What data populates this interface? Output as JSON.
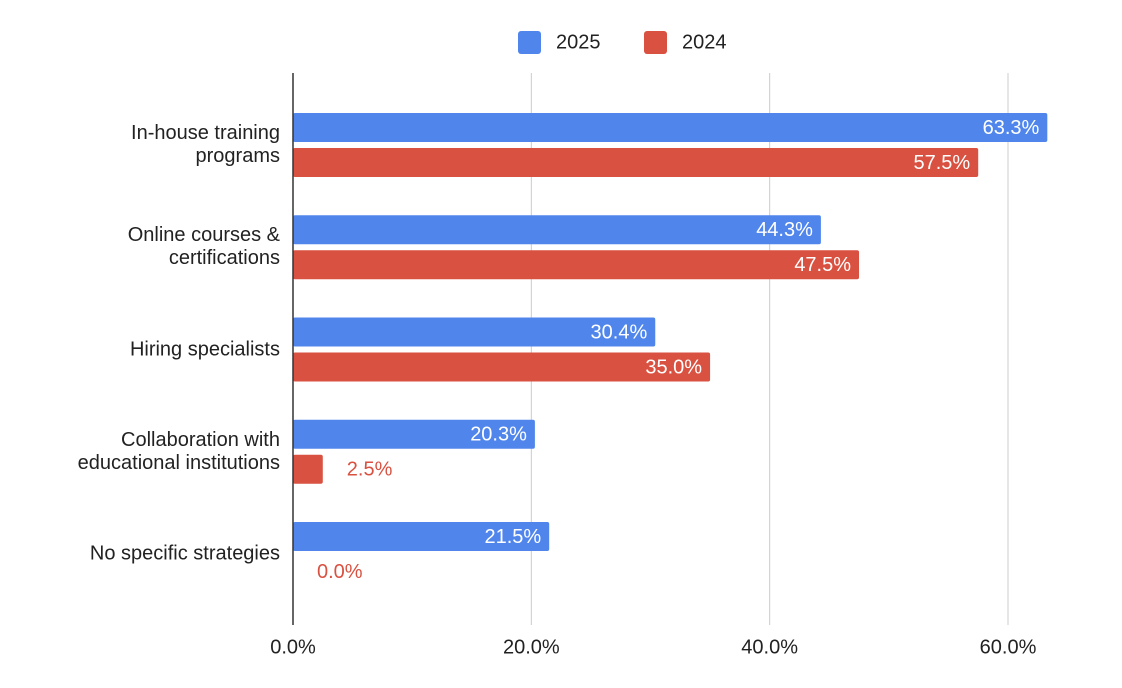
{
  "chart_data": {
    "type": "bar",
    "orientation": "horizontal",
    "categories": [
      "In-house training\nprograms",
      "Online courses &\ncertifications",
      "Hiring specialists",
      "Collaboration with\neducational institutions",
      "No specific strategies"
    ],
    "series": [
      {
        "name": "2025",
        "color": "#5086ec",
        "values": [
          63.3,
          44.3,
          30.4,
          20.3,
          21.5
        ],
        "value_labels": [
          "63.3%",
          "44.3%",
          "30.4%",
          "20.3%",
          "21.5%"
        ]
      },
      {
        "name": "2024",
        "color": "#d95140",
        "values": [
          57.5,
          47.5,
          35.0,
          2.5,
          0.0
        ],
        "value_labels": [
          "57.5%",
          "47.5%",
          "35.0%",
          "2.5%",
          "0.0%"
        ]
      }
    ],
    "xlim": [
      0,
      65
    ],
    "xticks": [
      {
        "value": 0,
        "label": "0.0%"
      },
      {
        "value": 20,
        "label": "20.0%"
      },
      {
        "value": 40,
        "label": "40.0%"
      },
      {
        "value": 60,
        "label": "60.0%"
      }
    ],
    "grid": true,
    "legend": "top"
  }
}
